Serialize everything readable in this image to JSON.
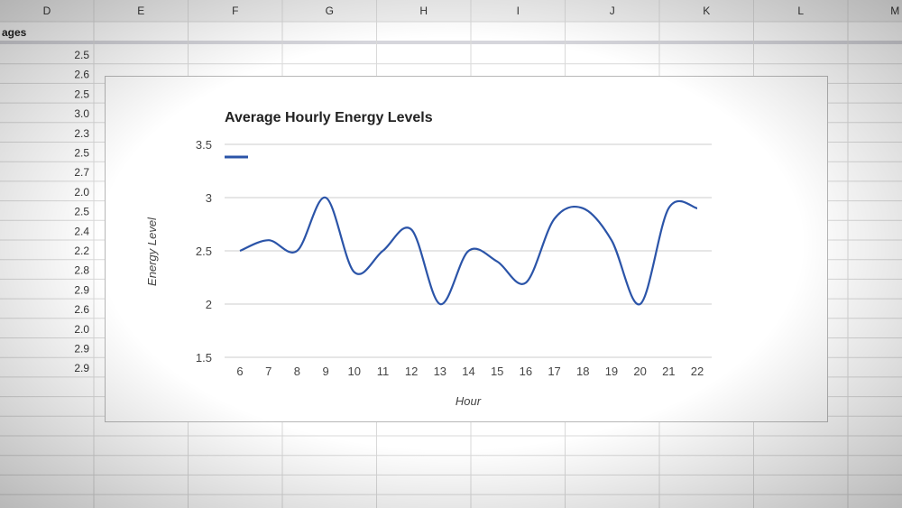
{
  "sheet": {
    "columns": [
      "D",
      "E",
      "F",
      "G",
      "H",
      "I",
      "J",
      "K",
      "L",
      "M"
    ],
    "header_cell": "ages",
    "values": [
      "2.5",
      "2.6",
      "2.5",
      "3.0",
      "2.3",
      "2.5",
      "2.7",
      "2.0",
      "2.5",
      "2.4",
      "2.2",
      "2.8",
      "2.9",
      "2.6",
      "2.0",
      "2.9",
      "2.9"
    ]
  },
  "colors": {
    "line": "#2b54a8",
    "grid": "#cccccc",
    "header_bg": "#f1f1f1",
    "cell_border": "#d9d9d9"
  },
  "chart_data": {
    "type": "line",
    "title": "Average Hourly Energy Levels",
    "xlabel": "Hour",
    "ylabel": "Energy Level",
    "x": [
      6,
      7,
      8,
      9,
      10,
      11,
      12,
      13,
      14,
      15,
      16,
      17,
      18,
      19,
      20,
      21,
      22
    ],
    "series": [
      {
        "values": [
          2.5,
          2.6,
          2.5,
          3.0,
          2.3,
          2.5,
          2.7,
          2.0,
          2.5,
          2.4,
          2.2,
          2.8,
          2.9,
          2.6,
          2.0,
          2.9,
          2.9
        ]
      }
    ],
    "yticks": [
      "1.5",
      "2",
      "2.5",
      "3",
      "3.5"
    ],
    "ylim": [
      1.5,
      3.5
    ],
    "grid": true,
    "legend": "top-left"
  }
}
